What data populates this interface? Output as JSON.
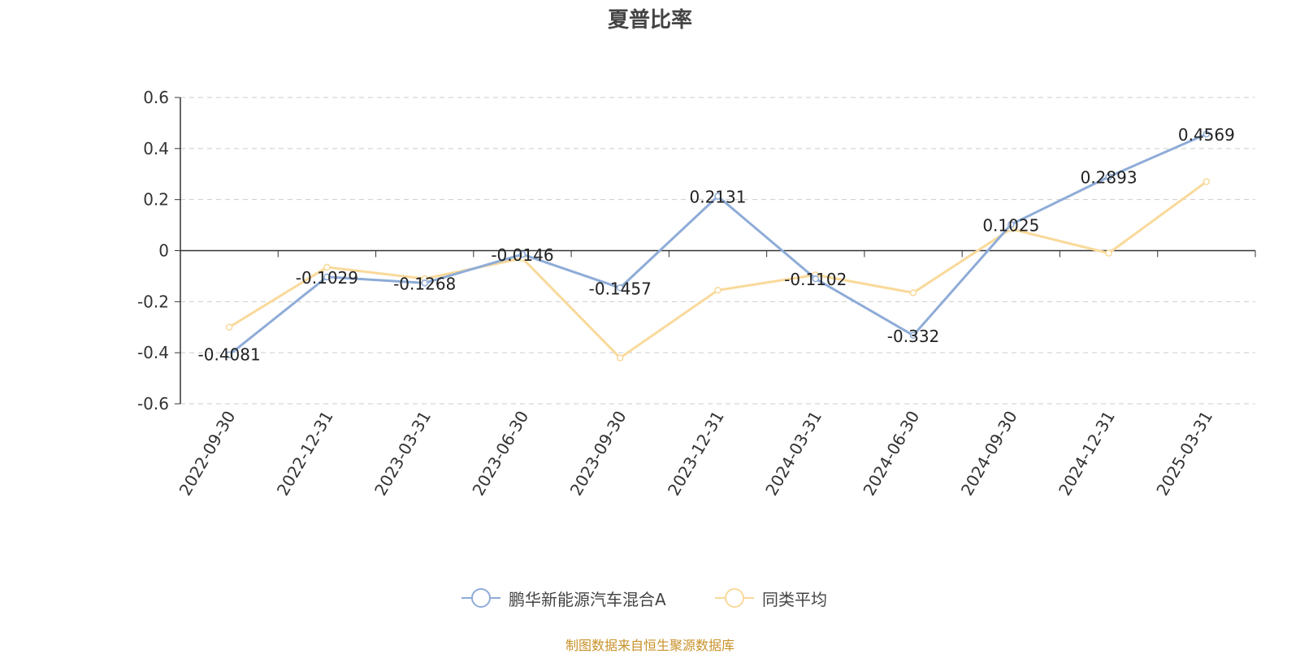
{
  "chart_data": {
    "type": "line",
    "title": "夏普比率",
    "categories": [
      "2022-09-30",
      "2022-12-31",
      "2023-03-31",
      "2023-06-30",
      "2023-09-30",
      "2023-12-31",
      "2024-03-31",
      "2024-06-30",
      "2024-09-30",
      "2024-12-31",
      "2025-03-31"
    ],
    "series": [
      {
        "name": "鹏华新能源汽车混合A",
        "color": "#8eacd8",
        "values": [
          -0.4081,
          -0.1029,
          -0.1268,
          -0.0146,
          -0.1457,
          0.2131,
          -0.1102,
          -0.332,
          0.1025,
          0.2893,
          0.4569
        ],
        "labels": [
          "-0.4081",
          "-0.1029",
          "-0.1268",
          "-0.0146",
          "-0.1457",
          "0.2131",
          "-0.1102",
          "-0.332",
          "0.1025",
          "0.2893",
          "0.4569"
        ]
      },
      {
        "name": "同类平均",
        "color": "#f9d99a",
        "values": [
          -0.3,
          -0.065,
          -0.11,
          -0.03,
          -0.42,
          -0.155,
          -0.095,
          -0.165,
          0.085,
          -0.01,
          0.27
        ]
      }
    ],
    "yticks": [
      "0.6",
      "0.4",
      "0.2",
      "0",
      "-0.2",
      "-0.4",
      "-0.6"
    ],
    "ylim": [
      -0.6,
      0.6
    ],
    "grid": true,
    "legend_position": "bottom-center"
  },
  "source_note": "制图数据来自恒生聚源数据库"
}
